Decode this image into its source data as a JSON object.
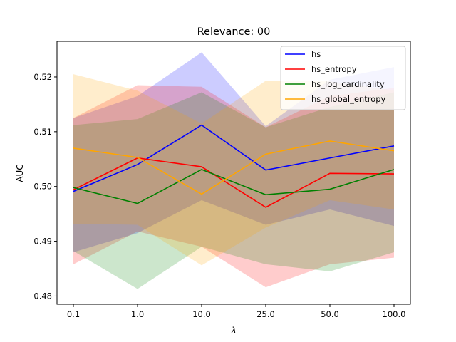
{
  "chart_data": {
    "type": "line",
    "title": "Relevance: 00",
    "xlabel": "λ",
    "ylabel": "AUC",
    "categories": [
      "0.1",
      "1.0",
      "10.0",
      "25.0",
      "50.0",
      "100.0"
    ],
    "ylim": [
      0.4785,
      0.5265
    ],
    "yticks": [
      0.48,
      0.49,
      0.5,
      0.51,
      0.52
    ],
    "ytick_labels": [
      "0.48",
      "0.49",
      "0.50",
      "0.51",
      "0.52"
    ],
    "grid": false,
    "legend_position": "top-right",
    "series": [
      {
        "name": "hs",
        "color": "#0000ff",
        "values": [
          0.4991,
          0.504,
          0.5112,
          0.503,
          0.5052,
          0.5074
        ],
        "upper": [
          0.5125,
          0.5165,
          0.5245,
          0.511,
          0.5195,
          0.5218
        ],
        "lower": [
          0.488,
          0.4915,
          0.4975,
          0.493,
          0.4958,
          0.4928
        ]
      },
      {
        "name": "hs_entropy",
        "color": "#ff0000",
        "values": [
          0.4994,
          0.5052,
          0.5036,
          0.4962,
          0.5024,
          0.5023
        ],
        "upper": [
          0.5125,
          0.5185,
          0.5182,
          0.5108,
          0.5165,
          0.518
        ],
        "lower": [
          0.4858,
          0.4918,
          0.489,
          0.4816,
          0.4858,
          0.487
        ]
      },
      {
        "name": "hs_log_cardinality",
        "color": "#008000",
        "values": [
          0.4998,
          0.4969,
          0.5031,
          0.4985,
          0.4995,
          0.5031
        ],
        "upper": [
          0.5112,
          0.5123,
          0.5172,
          0.5108,
          0.5145,
          0.5172
        ],
        "lower": [
          0.4882,
          0.4813,
          0.489,
          0.4858,
          0.4845,
          0.488
        ]
      },
      {
        "name": "hs_global_entropy",
        "color": "#ffa500",
        "values": [
          0.507,
          0.5053,
          0.4986,
          0.5059,
          0.5083,
          0.5065
        ],
        "upper": [
          0.5205,
          0.5175,
          0.5115,
          0.5193,
          0.5192,
          0.5175
        ],
        "lower": [
          0.4932,
          0.493,
          0.4856,
          0.4925,
          0.4975,
          0.4958
        ]
      }
    ]
  }
}
